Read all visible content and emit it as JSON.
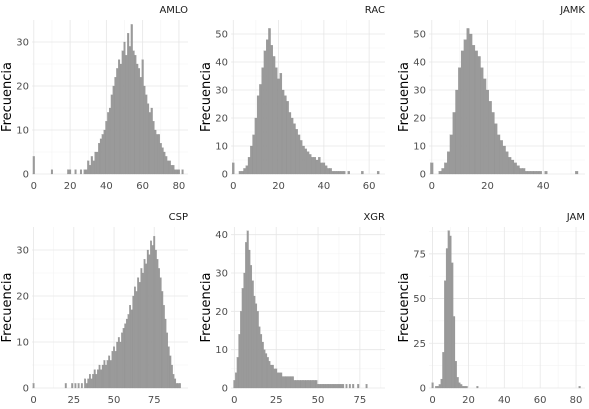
{
  "chart_data": [
    {
      "type": "bar",
      "title": "AMLO",
      "ylabel": "Frecuencia",
      "xlim": [
        -1,
        85
      ],
      "xticks": [
        0,
        20,
        40,
        60,
        80
      ],
      "ylim": [
        0,
        35
      ],
      "yticks": [
        0,
        10,
        20,
        30
      ],
      "x_start": 0,
      "bin_width": 1,
      "values": [
        4,
        0,
        0,
        0,
        0,
        0,
        0,
        0,
        0,
        0,
        1,
        0,
        0,
        0,
        0,
        0,
        0,
        0,
        0,
        1,
        1,
        0,
        0,
        1,
        0,
        0,
        1,
        0,
        1,
        1,
        3,
        2,
        4,
        3,
        5,
        5,
        7,
        8,
        9,
        10,
        12,
        14,
        15,
        18,
        20,
        22,
        24,
        26,
        25,
        28,
        30,
        27,
        32,
        29,
        34,
        28,
        27,
        25,
        24,
        22,
        26,
        20,
        18,
        16,
        14,
        15,
        12,
        10,
        9,
        9,
        7,
        6,
        5,
        4,
        3,
        3,
        2,
        2,
        1,
        1,
        1,
        0,
        1
      ]
    },
    {
      "type": "bar",
      "title": "RAC",
      "ylabel": "Frecuencia",
      "xlim": [
        -1,
        67
      ],
      "xticks": [
        0,
        20,
        40,
        60
      ],
      "ylim": [
        0,
        55
      ],
      "yticks": [
        0,
        10,
        20,
        30,
        40,
        50
      ],
      "x_start": 0,
      "bin_width": 1,
      "values": [
        4,
        0,
        0,
        1,
        1,
        2,
        3,
        6,
        10,
        14,
        20,
        28,
        32,
        38,
        44,
        48,
        52,
        46,
        42,
        38,
        34,
        36,
        30,
        28,
        26,
        22,
        20,
        18,
        16,
        14,
        12,
        10,
        9,
        8,
        7,
        6,
        6,
        5,
        6,
        4,
        4,
        3,
        2,
        2,
        1,
        1,
        1,
        1,
        1,
        1,
        0,
        1,
        0,
        0,
        0,
        0,
        0,
        1,
        0,
        0,
        0,
        0,
        0,
        0,
        1
      ]
    },
    {
      "type": "bar",
      "title": "JAMK",
      "ylabel": "Frecuencia",
      "xlim": [
        -1,
        55
      ],
      "xticks": [
        0,
        20,
        40
      ],
      "ylim": [
        0,
        55
      ],
      "yticks": [
        0,
        10,
        20,
        30,
        40,
        50
      ],
      "x_start": 0,
      "bin_width": 1,
      "values": [
        4,
        0,
        0,
        1,
        2,
        4,
        8,
        14,
        22,
        30,
        38,
        44,
        48,
        52,
        50,
        46,
        44,
        42,
        38,
        34,
        30,
        26,
        22,
        18,
        14,
        12,
        10,
        8,
        6,
        5,
        4,
        3,
        2,
        2,
        1,
        1,
        1,
        1,
        1,
        1,
        0,
        1,
        0,
        0,
        0,
        0,
        0,
        0,
        0,
        0,
        0,
        0,
        1
      ]
    },
    {
      "type": "bar",
      "title": "CSP",
      "ylabel": "Frecuencia",
      "xlim": [
        -1,
        96
      ],
      "xticks": [
        0,
        25,
        50,
        75
      ],
      "ylim": [
        0,
        35
      ],
      "yticks": [
        0,
        10,
        20,
        30
      ],
      "x_start": 0,
      "bin_width": 1,
      "values": [
        1,
        0,
        0,
        0,
        0,
        0,
        0,
        0,
        0,
        0,
        0,
        0,
        0,
        0,
        0,
        0,
        0,
        0,
        0,
        0,
        1,
        0,
        0,
        0,
        1,
        0,
        1,
        0,
        1,
        0,
        1,
        0,
        2,
        1,
        2,
        3,
        2,
        3,
        4,
        3,
        4,
        5,
        4,
        5,
        6,
        5,
        6,
        7,
        6,
        8,
        9,
        8,
        10,
        11,
        10,
        12,
        13,
        14,
        15,
        16,
        18,
        17,
        20,
        22,
        21,
        24,
        23,
        26,
        25,
        28,
        27,
        30,
        29,
        32,
        31,
        33,
        30,
        28,
        26,
        24,
        21,
        18,
        15,
        12,
        9,
        7,
        5,
        3,
        2,
        1,
        1,
        1
      ]
    },
    {
      "type": "bar",
      "title": "XGR",
      "ylabel": "Frecuencia",
      "xlim": [
        -2,
        90
      ],
      "xticks": [
        0,
        25,
        50,
        75
      ],
      "ylim": [
        0,
        42
      ],
      "yticks": [
        0,
        10,
        20,
        30,
        40
      ],
      "x_start": 0,
      "bin_width": 1,
      "values": [
        2,
        4,
        8,
        14,
        20,
        26,
        30,
        38,
        41,
        36,
        32,
        28,
        24,
        22,
        20,
        16,
        14,
        12,
        10,
        9,
        8,
        7,
        6,
        6,
        5,
        5,
        4,
        4,
        4,
        3,
        3,
        3,
        3,
        3,
        3,
        3,
        2,
        2,
        2,
        2,
        2,
        2,
        2,
        2,
        2,
        2,
        2,
        2,
        2,
        2,
        1,
        1,
        1,
        1,
        1,
        1,
        1,
        1,
        1,
        1,
        1,
        1,
        1,
        1,
        1,
        1,
        0,
        1,
        0,
        1,
        0,
        1,
        0,
        0,
        1,
        0,
        0,
        0,
        0,
        1
      ]
    },
    {
      "type": "bar",
      "title": "JAM",
      "ylabel": "Frecuencia",
      "xlim": [
        -2,
        85
      ],
      "xticks": [
        0,
        20,
        40,
        60,
        80
      ],
      "ylim": [
        0,
        90
      ],
      "yticks": [
        0,
        25,
        50,
        75
      ],
      "x_start": 0,
      "bin_width": 1,
      "values": [
        3,
        0,
        1,
        1,
        2,
        5,
        20,
        60,
        78,
        88,
        85,
        70,
        40,
        15,
        6,
        3,
        2,
        1,
        1,
        1,
        0,
        0,
        0,
        0,
        0,
        1,
        0,
        0,
        0,
        0,
        0,
        0,
        0,
        0,
        0,
        0,
        0,
        0,
        0,
        0,
        0,
        0,
        0,
        0,
        0,
        0,
        0,
        0,
        0,
        0,
        0,
        0,
        0,
        0,
        0,
        0,
        0,
        0,
        0,
        0,
        0,
        0,
        0,
        0,
        0,
        0,
        0,
        0,
        0,
        0,
        0,
        0,
        0,
        0,
        0,
        0,
        0,
        0,
        0,
        0,
        0,
        0,
        1
      ]
    }
  ]
}
